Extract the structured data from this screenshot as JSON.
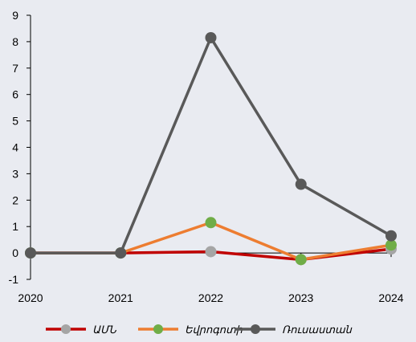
{
  "chart_data": {
    "type": "line",
    "title": "",
    "xlabel": "",
    "ylabel": "",
    "categories": [
      "2020",
      "2021",
      "2022",
      "2023",
      "2024"
    ],
    "ylim": [
      -1,
      9
    ],
    "yticks": [
      -1,
      0,
      1,
      2,
      3,
      4,
      5,
      6,
      7,
      8,
      9
    ],
    "grid": false,
    "legend_position": "bottom",
    "series": [
      {
        "name": "ԱՄՆ",
        "values": [
          0,
          0,
          0.05,
          -0.25,
          0.15
        ],
        "line_color": "#c00000",
        "marker_color": "#a5a5a5"
      },
      {
        "name": "Եվրոգոտի",
        "values": [
          0,
          0,
          1.15,
          -0.25,
          0.3
        ],
        "line_color": "#ed7d31",
        "marker_color": "#70ad47"
      },
      {
        "name": "Ռուսաստան",
        "values": [
          0,
          0,
          8.15,
          2.6,
          0.65
        ],
        "line_color": "#595959",
        "marker_color": "#595959"
      }
    ]
  }
}
